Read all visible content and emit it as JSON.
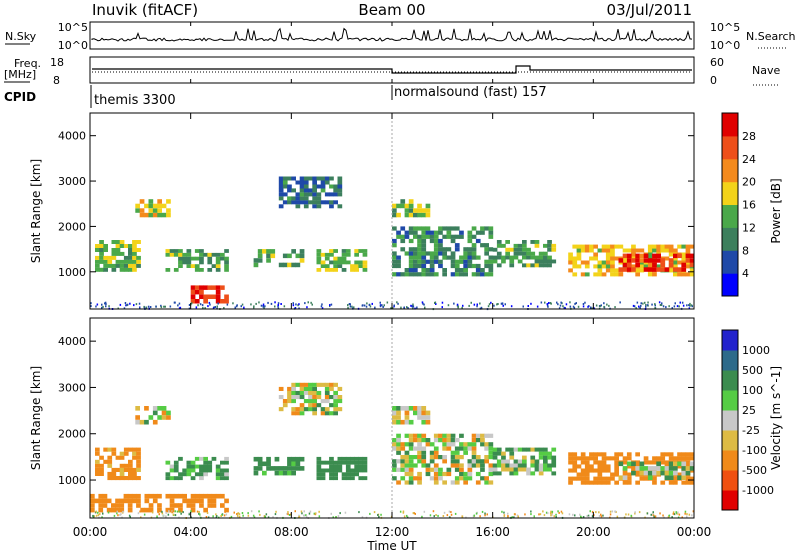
{
  "header": {
    "station": "Inuvik (fitACF)",
    "beam": "Beam 00",
    "date": "03/Jul/2011"
  },
  "noise_panel": {
    "left_label": "N.Sky",
    "left_ticks": [
      "10^5",
      "10^0"
    ],
    "right_ticks": [
      "10^5",
      "10^0"
    ],
    "right_label": "N.Search"
  },
  "freq_panel": {
    "left_label": "Freq.",
    "left_unit": "[MHz]",
    "left_ticks": [
      "18",
      "8"
    ],
    "right_ticks": [
      "60",
      "0"
    ],
    "right_label": "Nave"
  },
  "cpid": {
    "label": "CPID",
    "programs": [
      {
        "name": "themis 3300",
        "start_hour": 0
      },
      {
        "name": "normalsound (fast) 157",
        "start_hour": 12
      }
    ]
  },
  "colors": {
    "power_scale": [
      "#0000ff",
      "#1f49a8",
      "#3c7f5d",
      "#4aa84a",
      "#f3d31a",
      "#f48a1c",
      "#ee4f1a",
      "#e00000"
    ],
    "velocity_scale": [
      "#2222cc",
      "#2d6a8a",
      "#3b8c4f",
      "#55cc44",
      "#c8c8c8",
      "#ddbb44",
      "#f08a1a",
      "#f05010",
      "#e00000"
    ]
  },
  "chart_data": [
    {
      "type": "heatmap",
      "title": "Power",
      "ylabel": "Slant Range [km]",
      "xlabel": "",
      "x_ticks": [],
      "y_ticks": [
        "1000",
        "2000",
        "3000",
        "4000"
      ],
      "xlim_hours": [
        0,
        24
      ],
      "ylim_km": [
        180,
        4500
      ],
      "colorbar": {
        "label": "Power [dB]",
        "ticks": [
          "28",
          "24",
          "20",
          "16",
          "12",
          "8",
          "4"
        ],
        "range": [
          0,
          30
        ]
      },
      "echo_regions": [
        {
          "t": [
            0.2,
            2.0
          ],
          "r": [
            1000,
            1700
          ],
          "v": 14
        },
        {
          "t": [
            1.8,
            3.2
          ],
          "r": [
            2200,
            2600
          ],
          "v": 16
        },
        {
          "t": [
            3.0,
            5.5
          ],
          "r": [
            1000,
            1500
          ],
          "v": 12
        },
        {
          "t": [
            4.0,
            5.5
          ],
          "r": [
            300,
            700
          ],
          "v": 27
        },
        {
          "t": [
            6.5,
            8.5
          ],
          "r": [
            1100,
            1500
          ],
          "v": 12
        },
        {
          "t": [
            7.5,
            10.0
          ],
          "r": [
            2400,
            3100
          ],
          "v": 8
        },
        {
          "t": [
            9.0,
            11.0
          ],
          "r": [
            1000,
            1500
          ],
          "v": 14
        },
        {
          "t": [
            12.0,
            13.5
          ],
          "r": [
            2200,
            2600
          ],
          "v": 14
        },
        {
          "t": [
            12.0,
            16.0
          ],
          "r": [
            900,
            2000
          ],
          "v": 10
        },
        {
          "t": [
            16.0,
            18.5
          ],
          "r": [
            1100,
            1700
          ],
          "v": 12
        },
        {
          "t": [
            19.0,
            24.0
          ],
          "r": [
            900,
            1600
          ],
          "v": 18
        },
        {
          "t": [
            21.0,
            24.0
          ],
          "r": [
            1000,
            1400
          ],
          "v": 26
        }
      ]
    },
    {
      "type": "heatmap",
      "title": "Velocity",
      "ylabel": "Slant Range [km]",
      "xlabel": "Time UT",
      "x_ticks": [
        "00:00",
        "04:00",
        "08:00",
        "12:00",
        "16:00",
        "20:00",
        "00:00"
      ],
      "y_ticks": [
        "1000",
        "2000",
        "3000",
        "4000"
      ],
      "xlim_hours": [
        0,
        24
      ],
      "ylim_km": [
        180,
        4500
      ],
      "colorbar": {
        "label": "Velocity [m s^-1]",
        "ticks": [
          "1000",
          "500",
          "100",
          "25",
          "-25",
          "-100",
          "-500",
          "-1000"
        ],
        "range": [
          -1000,
          1000
        ]
      },
      "echo_regions": [
        {
          "t": [
            0.2,
            2.0
          ],
          "r": [
            1000,
            1700
          ],
          "v": -200
        },
        {
          "t": [
            1.8,
            3.2
          ],
          "r": [
            2200,
            2600
          ],
          "v": 0
        },
        {
          "t": [
            3.0,
            5.5
          ],
          "r": [
            1000,
            1500
          ],
          "v": 150
        },
        {
          "t": [
            0.0,
            5.5
          ],
          "r": [
            300,
            700
          ],
          "v": -300
        },
        {
          "t": [
            6.5,
            8.5
          ],
          "r": [
            1100,
            1500
          ],
          "v": 200
        },
        {
          "t": [
            7.5,
            10.0
          ],
          "r": [
            2400,
            3100
          ],
          "v": 0
        },
        {
          "t": [
            9.0,
            11.0
          ],
          "r": [
            1000,
            1500
          ],
          "v": 300
        },
        {
          "t": [
            12.0,
            13.5
          ],
          "r": [
            2200,
            2600
          ],
          "v": 0
        },
        {
          "t": [
            12.0,
            16.0
          ],
          "r": [
            900,
            2000
          ],
          "v": 0
        },
        {
          "t": [
            16.0,
            18.5
          ],
          "r": [
            1100,
            1700
          ],
          "v": 80
        },
        {
          "t": [
            19.0,
            24.0
          ],
          "r": [
            900,
            1600
          ],
          "v": -300
        },
        {
          "t": [
            21.0,
            24.0
          ],
          "r": [
            1000,
            1400
          ],
          "v": 80
        }
      ]
    }
  ]
}
